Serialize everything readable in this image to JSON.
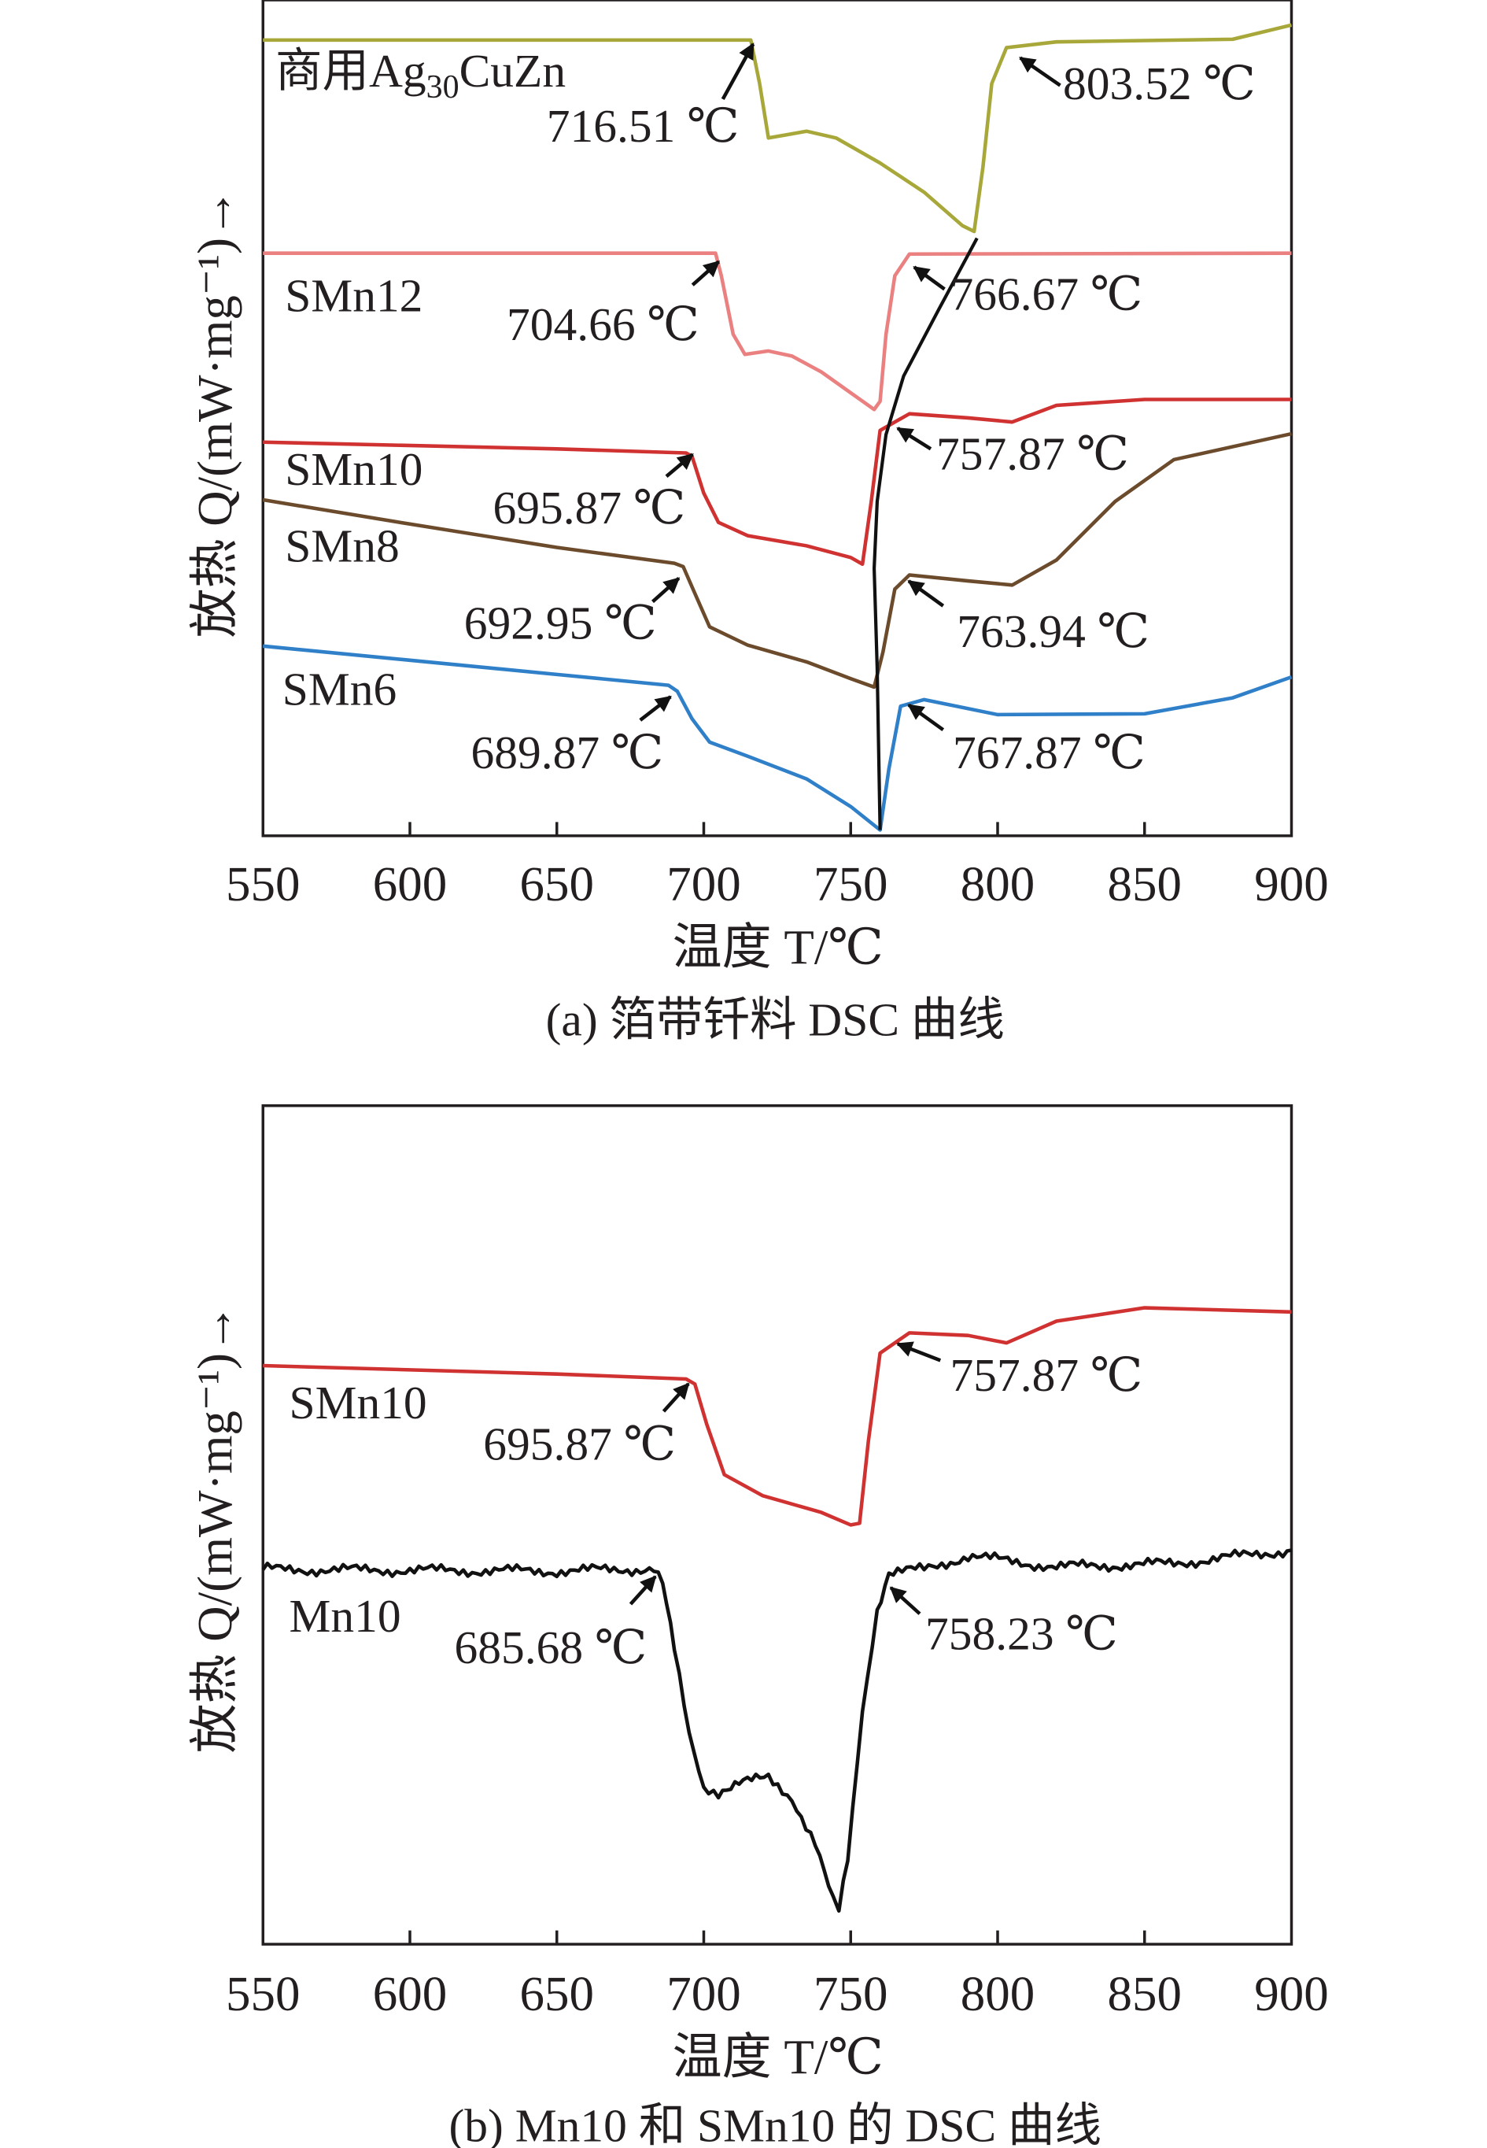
{
  "chart_data": [
    {
      "type": "line",
      "caption": "(a) 箔带钎料 DSC 曲线",
      "xlabel": "温度 T/℃",
      "ylabel": "放热 Q/(mW·mg⁻¹)→",
      "xlim": [
        550,
        900
      ],
      "xticks": [
        550,
        600,
        650,
        700,
        750,
        800,
        850,
        900
      ],
      "ylim": [
        0,
        100
      ],
      "y_units": "arbitrary (no y tick labels shown)",
      "grid": false,
      "series": [
        {
          "name": "商用Ag30CuZn",
          "label_main": "商用Ag",
          "label_sub": "30",
          "label_tail": "CuZn",
          "color": "#a8a83a",
          "points": [
            [
              550,
              95.2
            ],
            [
              716,
              95.2
            ],
            [
              719,
              90
            ],
            [
              722,
              83.5
            ],
            [
              727,
              83.8
            ],
            [
              735,
              84.3
            ],
            [
              745,
              83.5
            ],
            [
              760,
              80.5
            ],
            [
              775,
              77
            ],
            [
              788,
              73
            ],
            [
              792,
              72.3
            ],
            [
              795,
              80
            ],
            [
              798,
              90
            ],
            [
              803,
              94.3
            ],
            [
              820,
              95
            ],
            [
              880,
              95.3
            ],
            [
              900,
              97
            ]
          ]
        },
        {
          "name": "SMn12",
          "color": "#ea8080",
          "points": [
            [
              550,
              69.7
            ],
            [
              704,
              69.7
            ],
            [
              706,
              67
            ],
            [
              710,
              60
            ],
            [
              714,
              57.6
            ],
            [
              722,
              58
            ],
            [
              730,
              57.4
            ],
            [
              740,
              55.5
            ],
            [
              750,
              53
            ],
            [
              758,
              51
            ],
            [
              760,
              52
            ],
            [
              762,
              60
            ],
            [
              765,
              67
            ],
            [
              770,
              69.6
            ],
            [
              900,
              69.7
            ]
          ]
        },
        {
          "name": "SMn10",
          "color": "#d03232",
          "points": [
            [
              550,
              47.1
            ],
            [
              650,
              46.3
            ],
            [
              694,
              45.8
            ],
            [
              696,
              45.4
            ],
            [
              700,
              41
            ],
            [
              705,
              37.5
            ],
            [
              715,
              35.9
            ],
            [
              735,
              34.7
            ],
            [
              750,
              33.3
            ],
            [
              754,
              32.5
            ],
            [
              757,
              40
            ],
            [
              760,
              48.5
            ],
            [
              770,
              50.5
            ],
            [
              790,
              50
            ],
            [
              805,
              49.5
            ],
            [
              820,
              51.5
            ],
            [
              850,
              52.2
            ],
            [
              900,
              52.2
            ]
          ]
        },
        {
          "name": "SMn8",
          "color": "#6b4b2c",
          "points": [
            [
              550,
              40.2
            ],
            [
              600,
              37.3
            ],
            [
              650,
              34.5
            ],
            [
              690,
              32.6
            ],
            [
              693,
              32.2
            ],
            [
              697,
              29
            ],
            [
              702,
              25
            ],
            [
              715,
              22.8
            ],
            [
              735,
              20.8
            ],
            [
              750,
              18.8
            ],
            [
              758,
              17.8
            ],
            [
              761,
              22
            ],
            [
              765,
              29.5
            ],
            [
              770,
              31.2
            ],
            [
              790,
              30.5
            ],
            [
              805,
              30
            ],
            [
              820,
              33
            ],
            [
              840,
              40
            ],
            [
              860,
              45
            ],
            [
              900,
              48.1
            ]
          ]
        },
        {
          "name": "SMn6",
          "color": "#2f80c8",
          "points": [
            [
              550,
              22.7
            ],
            [
              600,
              21
            ],
            [
              650,
              19.3
            ],
            [
              688,
              18
            ],
            [
              691,
              17.3
            ],
            [
              696,
              14
            ],
            [
              702,
              11.2
            ],
            [
              715,
              9.5
            ],
            [
              735,
              6.8
            ],
            [
              750,
              3.5
            ],
            [
              760,
              0.7
            ],
            [
              763,
              8
            ],
            [
              767,
              15.5
            ],
            [
              775,
              16.3
            ],
            [
              800,
              14.5
            ],
            [
              850,
              14.6
            ],
            [
              880,
              16.5
            ],
            [
              900,
              19
            ]
          ]
        }
      ],
      "guide_line": {
        "color": "#111111",
        "points": [
          [
            793,
            71.5
          ],
          [
            780,
            63
          ],
          [
            768,
            55
          ],
          [
            762,
            48
          ],
          [
            759,
            40
          ],
          [
            758,
            32
          ],
          [
            759,
            20
          ],
          [
            760,
            0.7
          ]
        ]
      },
      "annotations": [
        {
          "text": "716.51 ℃",
          "T": 716.51
        },
        {
          "text": "803.52 ℃",
          "T": 803.52
        },
        {
          "text": "704.66 ℃",
          "T": 704.66
        },
        {
          "text": "766.67 ℃",
          "T": 766.67
        },
        {
          "text": "695.87 ℃",
          "T": 695.87
        },
        {
          "text": "757.87 ℃",
          "T": 757.87
        },
        {
          "text": "692.95 ℃",
          "T": 692.95
        },
        {
          "text": "763.94 ℃",
          "T": 763.94
        },
        {
          "text": "689.87 ℃",
          "T": 689.87
        },
        {
          "text": "767.87 ℃",
          "T": 767.87
        }
      ]
    },
    {
      "type": "line",
      "caption": "(b) Mn10 和 SMn10 的 DSC 曲线",
      "xlabel": "温度 T/℃",
      "ylabel": "放热 Q/(mW·mg⁻¹)→",
      "xlim": [
        550,
        900
      ],
      "xticks": [
        550,
        600,
        650,
        700,
        750,
        800,
        850,
        900
      ],
      "ylim": [
        0,
        100
      ],
      "y_units": "arbitrary (no y tick labels shown)",
      "grid": false,
      "series": [
        {
          "name": "SMn10",
          "color": "#d03232",
          "points": [
            [
              550,
              69
            ],
            [
              650,
              68
            ],
            [
              694,
              67.4
            ],
            [
              697,
              66.8
            ],
            [
              701,
              62
            ],
            [
              707,
              56
            ],
            [
              720,
              53.5
            ],
            [
              740,
              51.5
            ],
            [
              750,
              50
            ],
            [
              753,
              50.2
            ],
            [
              756,
              60
            ],
            [
              760,
              70.5
            ],
            [
              770,
              72.9
            ],
            [
              790,
              72.6
            ],
            [
              803,
              71.7
            ],
            [
              820,
              74.3
            ],
            [
              850,
              75.9
            ],
            [
              900,
              75.4
            ]
          ]
        },
        {
          "name": "Mn10",
          "color": "#111111",
          "noisy": true,
          "points": [
            [
              550,
              44.7
            ],
            [
              600,
              44.6
            ],
            [
              650,
              44.5
            ],
            [
              683,
              44.8
            ],
            [
              686,
              43
            ],
            [
              690,
              35
            ],
            [
              695,
              25
            ],
            [
              700,
              18.8
            ],
            [
              705,
              18.2
            ],
            [
              712,
              19.2
            ],
            [
              722,
              19.8
            ],
            [
              730,
              17.5
            ],
            [
              738,
              12
            ],
            [
              744,
              5
            ],
            [
              746,
              3.9
            ],
            [
              749,
              10
            ],
            [
              754,
              28
            ],
            [
              759,
              40
            ],
            [
              763,
              44.3
            ],
            [
              775,
              44.7
            ],
            [
              790,
              46.3
            ],
            [
              820,
              45
            ],
            [
              860,
              45.4
            ],
            [
              900,
              47
            ]
          ]
        }
      ],
      "annotations": [
        {
          "text": "695.87 ℃",
          "T": 695.87
        },
        {
          "text": "757.87 ℃",
          "T": 757.87
        },
        {
          "text": "685.68 ℃",
          "T": 685.68
        },
        {
          "text": "758.23 ℃",
          "T": 758.23
        }
      ]
    }
  ]
}
